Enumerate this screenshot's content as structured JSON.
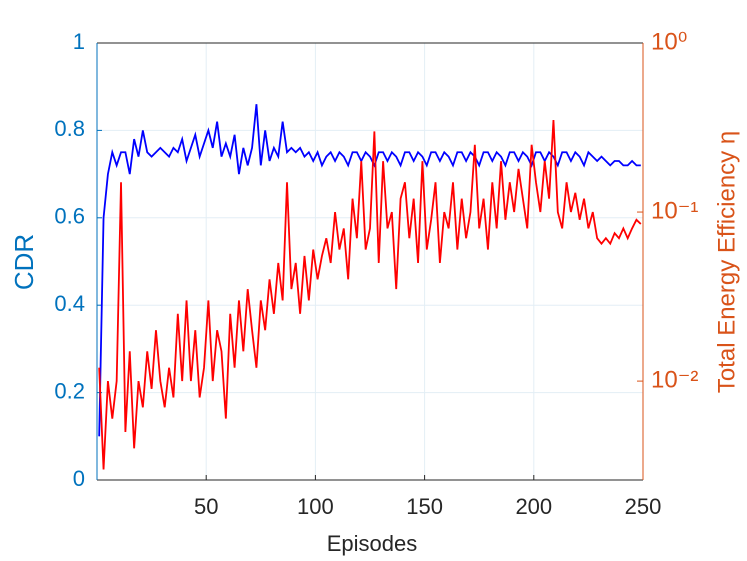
{
  "chart_data": {
    "type": "line",
    "xlabel": "Episodes",
    "ylabel": "CDR",
    "y2label": "Total Energy Efficiency η",
    "xlim": [
      0,
      250
    ],
    "xticks": [
      50,
      100,
      150,
      200,
      250
    ],
    "ylim": [
      0,
      1
    ],
    "yticks": [
      0,
      0.2,
      0.4,
      0.6,
      0.8,
      1
    ],
    "y2lim": [
      0.0026,
      1
    ],
    "y2scale": "log",
    "y2ticks": [
      {
        "value": 0.01,
        "label": "10⁻²"
      },
      {
        "value": 0.1,
        "label": "10⁻¹"
      },
      {
        "value": 1,
        "label": "10⁰"
      }
    ],
    "grid": true,
    "x": [
      1,
      3,
      5,
      7,
      9,
      11,
      13,
      15,
      17,
      19,
      21,
      23,
      25,
      27,
      29,
      31,
      33,
      35,
      37,
      39,
      41,
      43,
      45,
      47,
      49,
      51,
      53,
      55,
      57,
      59,
      61,
      63,
      65,
      67,
      69,
      71,
      73,
      75,
      77,
      79,
      81,
      83,
      85,
      87,
      89,
      91,
      93,
      95,
      97,
      99,
      101,
      103,
      105,
      107,
      109,
      111,
      113,
      115,
      117,
      119,
      121,
      123,
      125,
      127,
      129,
      131,
      133,
      135,
      137,
      139,
      141,
      143,
      145,
      147,
      149,
      151,
      153,
      155,
      157,
      159,
      161,
      163,
      165,
      167,
      169,
      171,
      173,
      175,
      177,
      179,
      181,
      183,
      185,
      187,
      189,
      191,
      193,
      195,
      197,
      199,
      201,
      203,
      205,
      207,
      209,
      211,
      213,
      215,
      217,
      219,
      221,
      223,
      225,
      227,
      229,
      231,
      233,
      235,
      237,
      239,
      241,
      243,
      245,
      247,
      249
    ],
    "series": [
      {
        "color": "#0000ff",
        "axis": "y",
        "values": [
          0.1,
          0.6,
          0.7,
          0.75,
          0.72,
          0.75,
          0.75,
          0.7,
          0.78,
          0.74,
          0.8,
          0.75,
          0.74,
          0.75,
          0.76,
          0.75,
          0.74,
          0.76,
          0.75,
          0.78,
          0.73,
          0.76,
          0.79,
          0.74,
          0.77,
          0.8,
          0.76,
          0.82,
          0.74,
          0.77,
          0.74,
          0.79,
          0.7,
          0.76,
          0.72,
          0.76,
          0.86,
          0.72,
          0.8,
          0.73,
          0.76,
          0.74,
          0.82,
          0.75,
          0.76,
          0.75,
          0.76,
          0.74,
          0.75,
          0.73,
          0.75,
          0.72,
          0.74,
          0.75,
          0.73,
          0.75,
          0.74,
          0.72,
          0.75,
          0.75,
          0.73,
          0.75,
          0.74,
          0.72,
          0.75,
          0.75,
          0.73,
          0.75,
          0.74,
          0.72,
          0.75,
          0.75,
          0.73,
          0.75,
          0.74,
          0.72,
          0.75,
          0.75,
          0.73,
          0.75,
          0.74,
          0.72,
          0.75,
          0.75,
          0.73,
          0.75,
          0.74,
          0.72,
          0.75,
          0.75,
          0.73,
          0.75,
          0.74,
          0.72,
          0.75,
          0.75,
          0.73,
          0.75,
          0.74,
          0.72,
          0.75,
          0.75,
          0.73,
          0.75,
          0.74,
          0.72,
          0.75,
          0.75,
          0.73,
          0.75,
          0.74,
          0.72,
          0.75,
          0.74,
          0.73,
          0.74,
          0.73,
          0.72,
          0.73,
          0.73,
          0.72,
          0.72,
          0.73,
          0.72,
          0.72
        ]
      },
      {
        "color": "#ff0000",
        "axis": "y2",
        "values": [
          0.012,
          0.003,
          0.01,
          0.006,
          0.01,
          0.15,
          0.005,
          0.015,
          0.004,
          0.01,
          0.007,
          0.015,
          0.009,
          0.02,
          0.01,
          0.007,
          0.012,
          0.008,
          0.025,
          0.01,
          0.03,
          0.01,
          0.02,
          0.008,
          0.012,
          0.03,
          0.01,
          0.02,
          0.015,
          0.006,
          0.025,
          0.012,
          0.03,
          0.015,
          0.035,
          0.02,
          0.012,
          0.03,
          0.02,
          0.04,
          0.025,
          0.05,
          0.03,
          0.15,
          0.035,
          0.05,
          0.025,
          0.055,
          0.03,
          0.06,
          0.04,
          0.055,
          0.07,
          0.05,
          0.1,
          0.06,
          0.08,
          0.04,
          0.12,
          0.07,
          0.2,
          0.06,
          0.08,
          0.3,
          0.05,
          0.2,
          0.08,
          0.1,
          0.035,
          0.12,
          0.15,
          0.07,
          0.12,
          0.05,
          0.2,
          0.06,
          0.09,
          0.15,
          0.05,
          0.1,
          0.08,
          0.15,
          0.06,
          0.12,
          0.07,
          0.1,
          0.25,
          0.08,
          0.12,
          0.06,
          0.15,
          0.08,
          0.2,
          0.09,
          0.15,
          0.1,
          0.18,
          0.12,
          0.08,
          0.25,
          0.15,
          0.1,
          0.2,
          0.12,
          0.35,
          0.1,
          0.08,
          0.15,
          0.1,
          0.13,
          0.09,
          0.12,
          0.08,
          0.1,
          0.07,
          0.065,
          0.07,
          0.065,
          0.075,
          0.07,
          0.08,
          0.07,
          0.08,
          0.09,
          0.085
        ]
      }
    ],
    "ycolor": "#0072bd",
    "y2color": "#d95319"
  }
}
